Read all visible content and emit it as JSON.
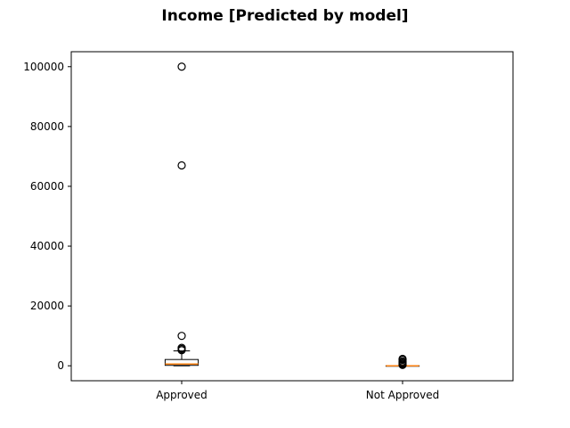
{
  "chart_data": {
    "type": "boxplot",
    "title": "Income [Predicted by model]",
    "xlabel": "",
    "ylabel": "",
    "ylim": [
      -5000,
      105000
    ],
    "yticks": [
      0,
      20000,
      40000,
      60000,
      80000,
      100000
    ],
    "grid": false,
    "categories": [
      "Approved",
      "Not Approved"
    ],
    "boxes": [
      {
        "label": "Approved",
        "whisker_low": 0,
        "q1": 150,
        "median": 600,
        "q3": 2100,
        "whisker_high": 5000,
        "outliers": [
          100000,
          67000,
          10000,
          6000,
          5600,
          5200
        ]
      },
      {
        "label": "Not Approved",
        "whisker_low": 0,
        "q1": 0,
        "median": 0,
        "q3": 0,
        "whisker_high": 0,
        "outliers": [
          300,
          500,
          800,
          1100,
          1500,
          2000,
          2300
        ]
      }
    ],
    "colors": {
      "box": "#000000",
      "median": "#ff7f0e",
      "outlier": "#000000"
    }
  }
}
